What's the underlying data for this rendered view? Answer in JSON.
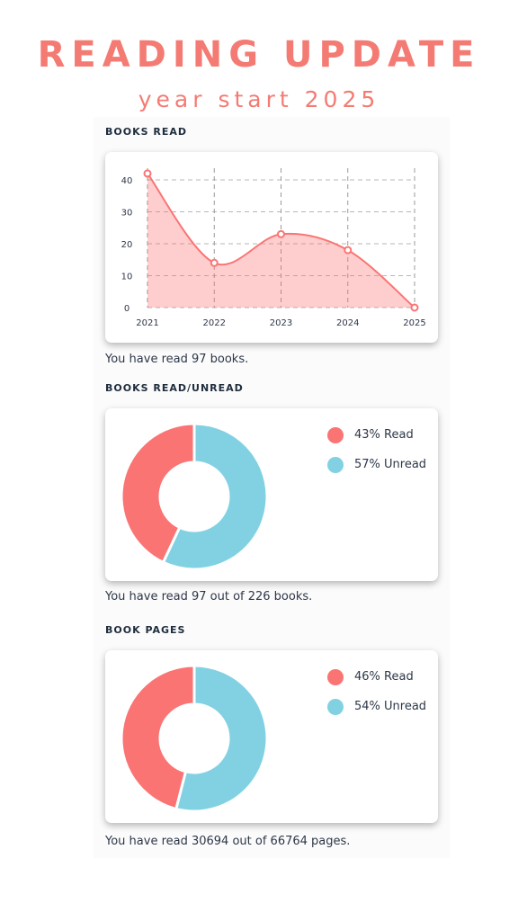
{
  "header": {
    "title": "READING UPDATE",
    "subtitle": "year start 2025"
  },
  "colors": {
    "read": "#fb7474",
    "unread": "#82d1e3",
    "title": "#f47b73"
  },
  "sections": {
    "books_read": {
      "title": "BOOKS READ",
      "caption": "You have read 97 books."
    },
    "books_read_unread": {
      "title": "BOOKS READ/UNREAD",
      "caption": "You have read 97 out of 226 books.",
      "legend": [
        "43% Read",
        "57% Unread"
      ]
    },
    "book_pages": {
      "title": "BOOK PAGES",
      "caption": "You have read 30694 out of 66764 pages.",
      "legend": [
        "46% Read",
        "54% Unread"
      ]
    }
  },
  "chart_data": [
    {
      "type": "area",
      "title": "BOOKS READ",
      "categories": [
        "2021",
        "2022",
        "2023",
        "2024",
        "2025"
      ],
      "values": [
        42,
        14,
        23,
        18,
        0
      ],
      "yticks": [
        "0",
        "10",
        "20",
        "30",
        "40"
      ],
      "ylim": [
        0,
        40
      ],
      "grid": true,
      "legend": "none"
    },
    {
      "type": "pie",
      "title": "BOOKS READ/UNREAD",
      "labels": [
        "43% Read",
        "57% Unread"
      ],
      "values": [
        43,
        57
      ],
      "legend": "right"
    },
    {
      "type": "pie",
      "title": "BOOK PAGES",
      "labels": [
        "46% Read",
        "54% Unread"
      ],
      "values": [
        46,
        54
      ],
      "legend": "right"
    }
  ]
}
